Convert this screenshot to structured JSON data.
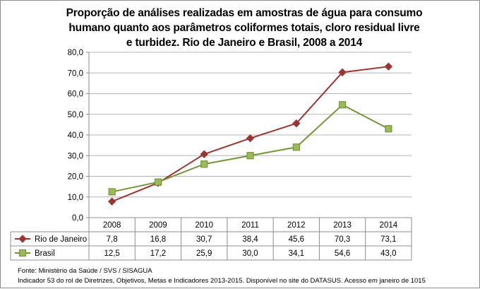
{
  "chart_data": {
    "type": "line",
    "title_lines": [
      "Proporção de análises realizadas em amostras de água para consumo",
      "humano quanto aos parâmetros coliformes totais, cloro residual livre",
      "e turbidez. Rio de Janeiro e Brasil, 2008 a 2014"
    ],
    "categories": [
      "2008",
      "2009",
      "2010",
      "2011",
      "2012",
      "2013",
      "2014"
    ],
    "series": [
      {
        "name": "Rio de Janeiro",
        "values": [
          7.8,
          16.8,
          30.7,
          38.4,
          45.6,
          70.3,
          73.1
        ],
        "labels": [
          "7,8",
          "16,8",
          "30,7",
          "38,4",
          "45,6",
          "70,3",
          "73,1"
        ],
        "color": "#9b3532",
        "marker": "diamond"
      },
      {
        "name": "Brasil",
        "values": [
          12.5,
          17.2,
          25.9,
          30.0,
          34.1,
          54.6,
          43.0
        ],
        "labels": [
          "12,5",
          "17,2",
          "25,9",
          "30,0",
          "34,1",
          "54,6",
          "43,0"
        ],
        "color": "#77933c",
        "marker_fill": "#9bbb59",
        "marker": "square"
      }
    ],
    "ylim": [
      0,
      80
    ],
    "yticks": [
      0,
      10,
      20,
      30,
      40,
      50,
      60,
      70,
      80
    ],
    "ytick_labels": [
      "0,0",
      "10,0",
      "20,0",
      "30,0",
      "40,0",
      "50,0",
      "60,0",
      "70,0",
      "80,0"
    ],
    "xlabel": "",
    "ylabel": "",
    "grid": true,
    "legend": "data-table"
  },
  "footnotes": {
    "source": "Fonte: Ministério da Saúde / SVS / SISAGUA",
    "indicator": "Indicador 53 do rol de Diretrizes, Objetivos, Metas e Indicadores 2013-2015. Disponível no site do DATASUS. Acesso em janeiro de 1015"
  }
}
